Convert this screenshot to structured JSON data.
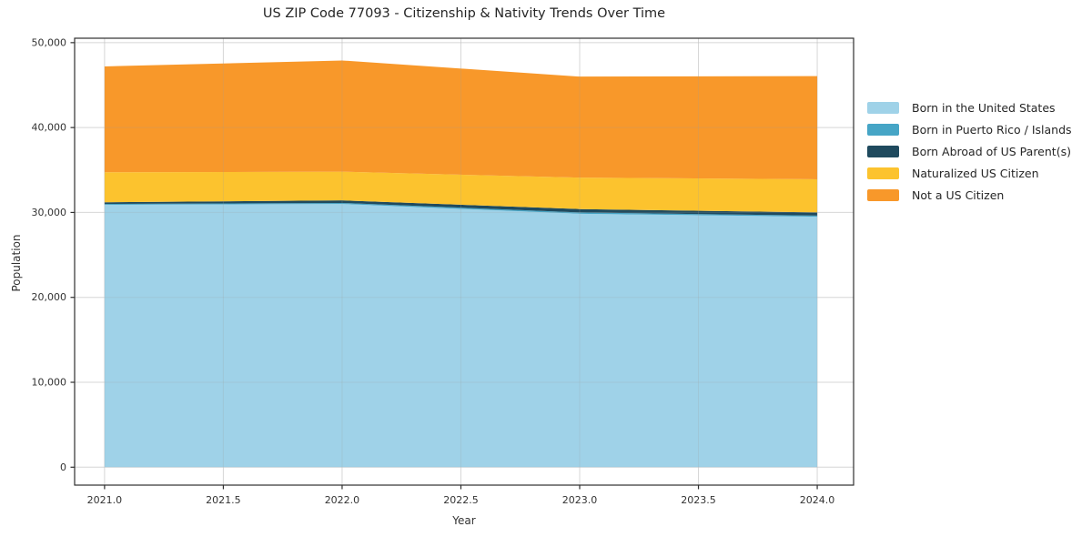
{
  "chart_data": {
    "type": "area",
    "stacked": true,
    "title": "US ZIP Code 77093 - Citizenship & Nativity Trends Over Time",
    "xlabel": "Year",
    "ylabel": "Population",
    "x": [
      2021,
      2022,
      2023,
      2024
    ],
    "series": [
      {
        "name": "Born in the United States",
        "color": "#9fd2e8",
        "values": [
          30900,
          31000,
          29850,
          29500
        ]
      },
      {
        "name": "Born in Puerto Rico / Islands",
        "color": "#46a5c6",
        "values": [
          100,
          120,
          150,
          130
        ]
      },
      {
        "name": "Born Abroad of US Parent(s)",
        "color": "#1f4a5e",
        "values": [
          200,
          300,
          400,
          380
        ]
      },
      {
        "name": "Naturalized US Citizen",
        "color": "#fcc32e",
        "values": [
          3530,
          3380,
          3700,
          3900
        ]
      },
      {
        "name": "Not a US Citizen",
        "color": "#f8982a",
        "values": [
          12470,
          13100,
          11900,
          12150
        ]
      }
    ],
    "x_ticks": {
      "values": [
        2021.0,
        2021.5,
        2022.0,
        2022.5,
        2023.0,
        2023.5,
        2024.0
      ],
      "labels": [
        "2021.0",
        "2021.5",
        "2022.0",
        "2022.5",
        "2023.0",
        "2023.5",
        "2024.0"
      ]
    },
    "y_ticks": {
      "values": [
        0,
        10000,
        20000,
        30000,
        40000,
        50000
      ],
      "labels": [
        "0",
        "10,000",
        "20,000",
        "30,000",
        "40,000",
        "50,000"
      ]
    },
    "xlim": [
      2020.874,
      2024.153
    ],
    "ylim": [
      -2112,
      50520
    ],
    "grid": true,
    "legend_position": "right",
    "colors": {
      "spine": "#2f2f2f",
      "grid_under": "#e7e7e7",
      "grid_over": "rgba(160,160,160,0.22)",
      "tick_label": "#333333"
    }
  }
}
